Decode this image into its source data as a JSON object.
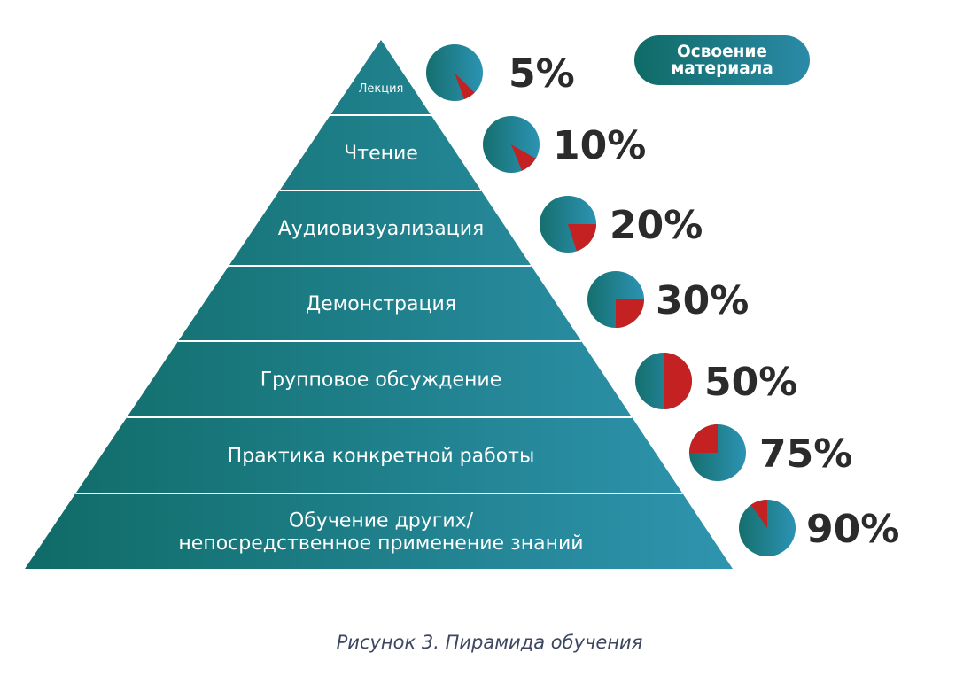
{
  "badge": {
    "line1": "Освоение",
    "line2": "материала"
  },
  "levels": [
    {
      "label_lines": [
        "Лекция"
      ],
      "percent": 5,
      "percent_label": "5%"
    },
    {
      "label_lines": [
        "Чтение"
      ],
      "percent": 10,
      "percent_label": "10%"
    },
    {
      "label_lines": [
        "Аудиовизуализация"
      ],
      "percent": 20,
      "percent_label": "20%"
    },
    {
      "label_lines": [
        "Демонстрация"
      ],
      "percent": 30,
      "percent_label": "30%"
    },
    {
      "label_lines": [
        "Групповое обсуждение"
      ],
      "percent": 50,
      "percent_label": "50%"
    },
    {
      "label_lines": [
        "Практика конкретной работы"
      ],
      "percent": 75,
      "percent_label": "75%"
    },
    {
      "label_lines": [
        "Обучение других/",
        "непосредственное применение знаний"
      ],
      "percent": 90,
      "percent_label": "90%"
    }
  ],
  "caption": "Рисунок 3. Пирамида обучения",
  "colors": {
    "pyramid_left": "#0f6b66",
    "pyramid_right": "#2f94af",
    "divider": "#ffffff",
    "pie_base_left": "#156f6e",
    "pie_base_right": "#2c93b3",
    "pie_highlight": "#c42222",
    "percent_text": "#2b2b2b"
  }
}
